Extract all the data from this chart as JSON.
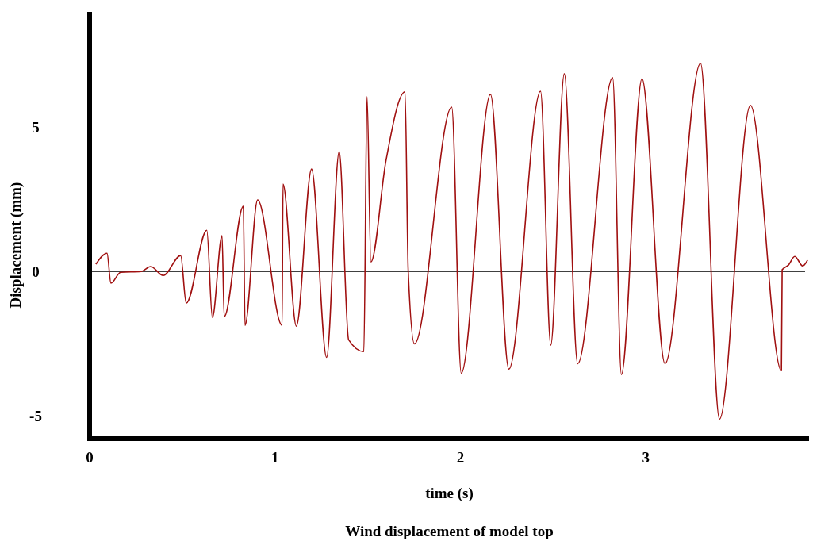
{
  "chart_data": {
    "type": "line",
    "title": "Wind displacement of model top",
    "xlabel": "time (s)",
    "ylabel": "Displacement (mm)",
    "xlim": [
      0,
      3.88
    ],
    "xticks": [
      0,
      1,
      2,
      3
    ],
    "ylim": [
      -5.8,
      9
    ],
    "yticks": [
      -5,
      0,
      5
    ],
    "grid": false,
    "marker": "none",
    "line_style": "solid",
    "ref_lines": [
      {
        "axis": "y",
        "value": 0,
        "color": "#000000"
      }
    ],
    "series": [
      {
        "color": "#a01010",
        "x": [
          0.034,
          0.094,
          0.115,
          0.167,
          0.278,
          0.329,
          0.397,
          0.491,
          0.521,
          0.632,
          0.662,
          0.714,
          0.726,
          0.829,
          0.838,
          0.906,
          1.038,
          1.043,
          1.115,
          1.197,
          1.278,
          1.346,
          1.397,
          1.479,
          1.496,
          1.517,
          1.598,
          1.701,
          1.718,
          1.752,
          1.953,
          2.004,
          2.162,
          2.261,
          2.432,
          2.487,
          2.56,
          2.632,
          2.821,
          2.868,
          2.979,
          3.103,
          3.295,
          3.397,
          3.564,
          3.731,
          3.735,
          3.769,
          3.803,
          3.846,
          3.872
        ],
        "values": [
          0.25,
          0.63,
          -0.41,
          -0.03,
          0,
          0.17,
          -0.14,
          0.55,
          -1.1,
          1.43,
          -1.6,
          1.24,
          -1.57,
          2.26,
          -1.87,
          2.48,
          -1.87,
          3.03,
          -1.9,
          3.55,
          -2.98,
          4.16,
          -2.37,
          -2.78,
          6.06,
          0.33,
          3.83,
          6.23,
          0.06,
          -2.51,
          5.7,
          -3.53,
          6.14,
          -3.39,
          6.25,
          -2.56,
          6.86,
          -3.2,
          6.72,
          -3.58,
          6.69,
          -3.2,
          7.22,
          -5.12,
          5.76,
          -3.44,
          0.06,
          0.22,
          0.52,
          0.19,
          0.39
        ]
      }
    ]
  }
}
